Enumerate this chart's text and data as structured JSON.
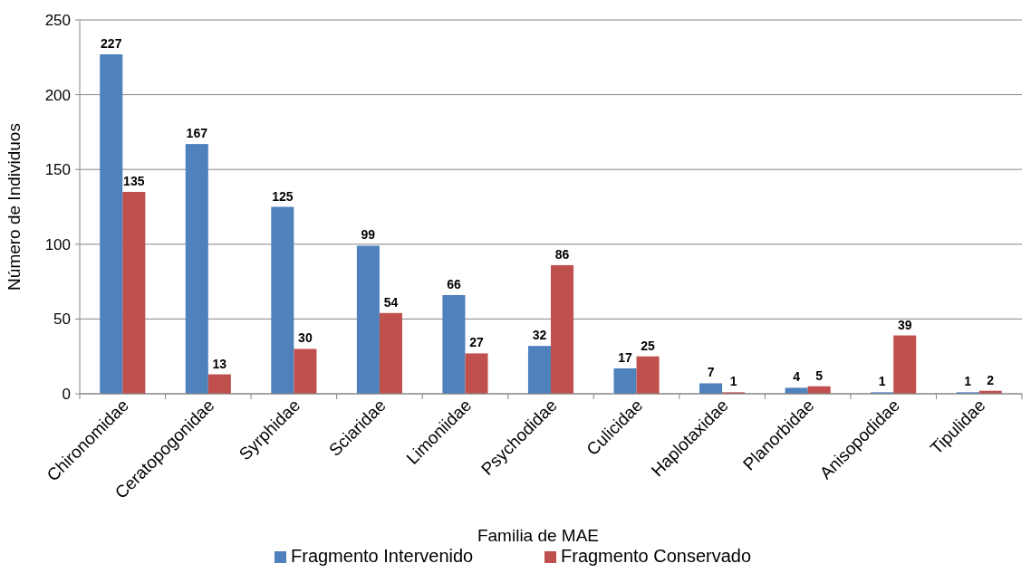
{
  "chart_data": {
    "type": "bar",
    "xlabel": "Familia de MAE",
    "ylabel": "Número de Individuos",
    "categories": [
      "Chironomidae",
      "Ceratopogonidae",
      "Syrphidae",
      "Sciaridae",
      "Limoniidae",
      "Psychodidae",
      "Culicidae",
      "Haplotaxidae",
      "Planorbidae",
      "Anisopodidae",
      "Tipulidae"
    ],
    "series": [
      {
        "name": "Fragmento Intervenido",
        "color": "#4f81bd",
        "values": [
          227,
          167,
          125,
          99,
          66,
          32,
          17,
          7,
          4,
          1,
          1
        ]
      },
      {
        "name": "Fragmento Conservado",
        "color": "#c0504d",
        "values": [
          135,
          13,
          30,
          54,
          27,
          86,
          25,
          1,
          5,
          39,
          2
        ]
      }
    ],
    "ylim": [
      0,
      250
    ],
    "yticks": [
      0,
      50,
      100,
      150,
      200,
      250
    ],
    "grid": "y",
    "legend": "bottom",
    "data_labels": true
  }
}
